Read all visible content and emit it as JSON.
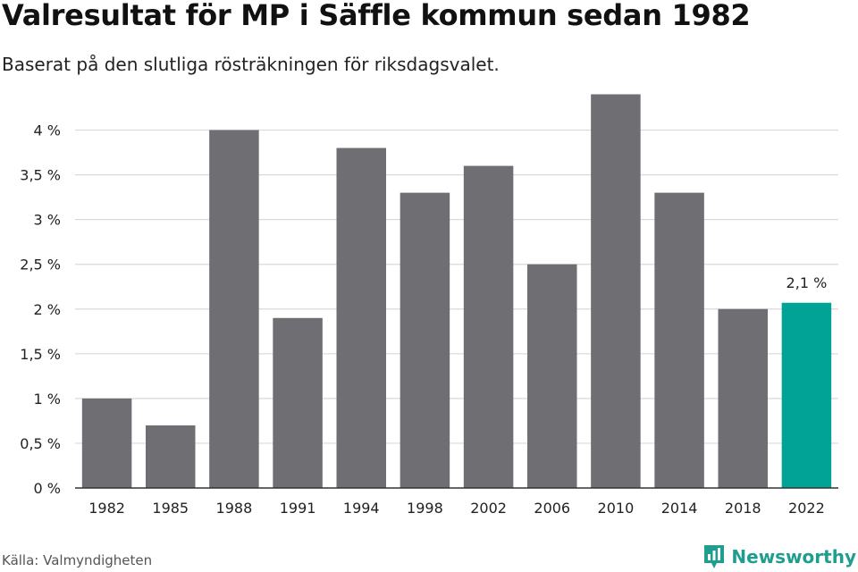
{
  "header": {
    "title": "Valresultat för MP i Säffle kommun sedan 1982",
    "subtitle": "Baserat på den slutliga rösträkningen för riksdagsvalet."
  },
  "footer": {
    "source": "Källa: Valmyndigheten",
    "brand": "Newsworthy",
    "brand_icon": "newsworthy-logo-icon"
  },
  "colors": {
    "bar": "#6f6e73",
    "highlight": "#00a396",
    "grid": "#d9d9d9",
    "axis": "#333333",
    "brand": "#1f9e8f"
  },
  "chart_data": {
    "type": "bar",
    "categories": [
      "1982",
      "1985",
      "1988",
      "1991",
      "1994",
      "1998",
      "2002",
      "2006",
      "2010",
      "2014",
      "2018",
      "2022"
    ],
    "values": [
      1.0,
      0.7,
      4.0,
      1.9,
      3.8,
      3.3,
      3.6,
      2.5,
      4.4,
      3.3,
      2.0,
      2.07
    ],
    "highlight_index": 11,
    "annotation": {
      "index": 11,
      "text": "2,1 %"
    },
    "ylim": [
      0,
      4.4
    ],
    "yticks": [
      0,
      0.5,
      1,
      1.5,
      2,
      2.5,
      3,
      3.5,
      4
    ],
    "ytick_labels": [
      "0 %",
      "0,5 %",
      "1 %",
      "1,5 %",
      "2 %",
      "2,5 %",
      "3 %",
      "3,5 %",
      "4 %"
    ],
    "grid": true,
    "xlabel": "",
    "ylabel": ""
  }
}
